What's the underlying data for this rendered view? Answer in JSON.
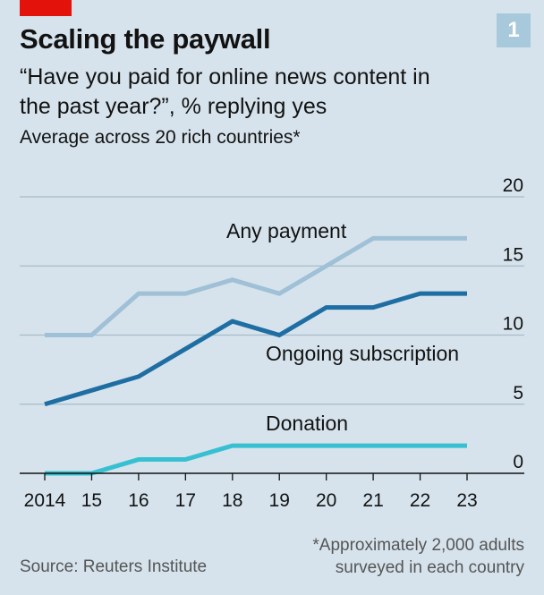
{
  "header": {
    "badge_number": "1",
    "title": "Scaling the paywall",
    "subtitle": "“Have you paid for online news content in the past year?”, % replying yes",
    "subnote": "Average across 20 rich countries*"
  },
  "footer": {
    "source": "Source: Reuters Institute",
    "footnote_line1": "*Approximately 2,000 adults",
    "footnote_line2": "surveyed in each country"
  },
  "colors": {
    "background": "#d6e3ec",
    "brand_red": "#e3120b",
    "any_payment": "#9fc0d6",
    "ongoing_subscription": "#1f6ea3",
    "donation": "#36c0d1"
  },
  "chart_data": {
    "type": "line",
    "x": [
      2014,
      2015,
      2016,
      2017,
      2018,
      2019,
      2020,
      2021,
      2022,
      2023
    ],
    "x_tick_labels": [
      "2014",
      "15",
      "16",
      "17",
      "18",
      "19",
      "20",
      "21",
      "22",
      "23"
    ],
    "y_ticks": [
      "0",
      "5",
      "10",
      "15",
      "20"
    ],
    "ylim": [
      0,
      20
    ],
    "y_axis_side": "right",
    "grid": true,
    "series": [
      {
        "name": "Any payment",
        "values": [
          10,
          10,
          13,
          13,
          14,
          13,
          15,
          17,
          17,
          17
        ]
      },
      {
        "name": "Ongoing subscription",
        "values": [
          5,
          6,
          7,
          9,
          11,
          10,
          12,
          12,
          13,
          13
        ]
      },
      {
        "name": "Donation",
        "values": [
          0,
          0,
          1,
          1,
          2,
          2,
          2,
          2,
          2,
          2
        ]
      }
    ]
  }
}
